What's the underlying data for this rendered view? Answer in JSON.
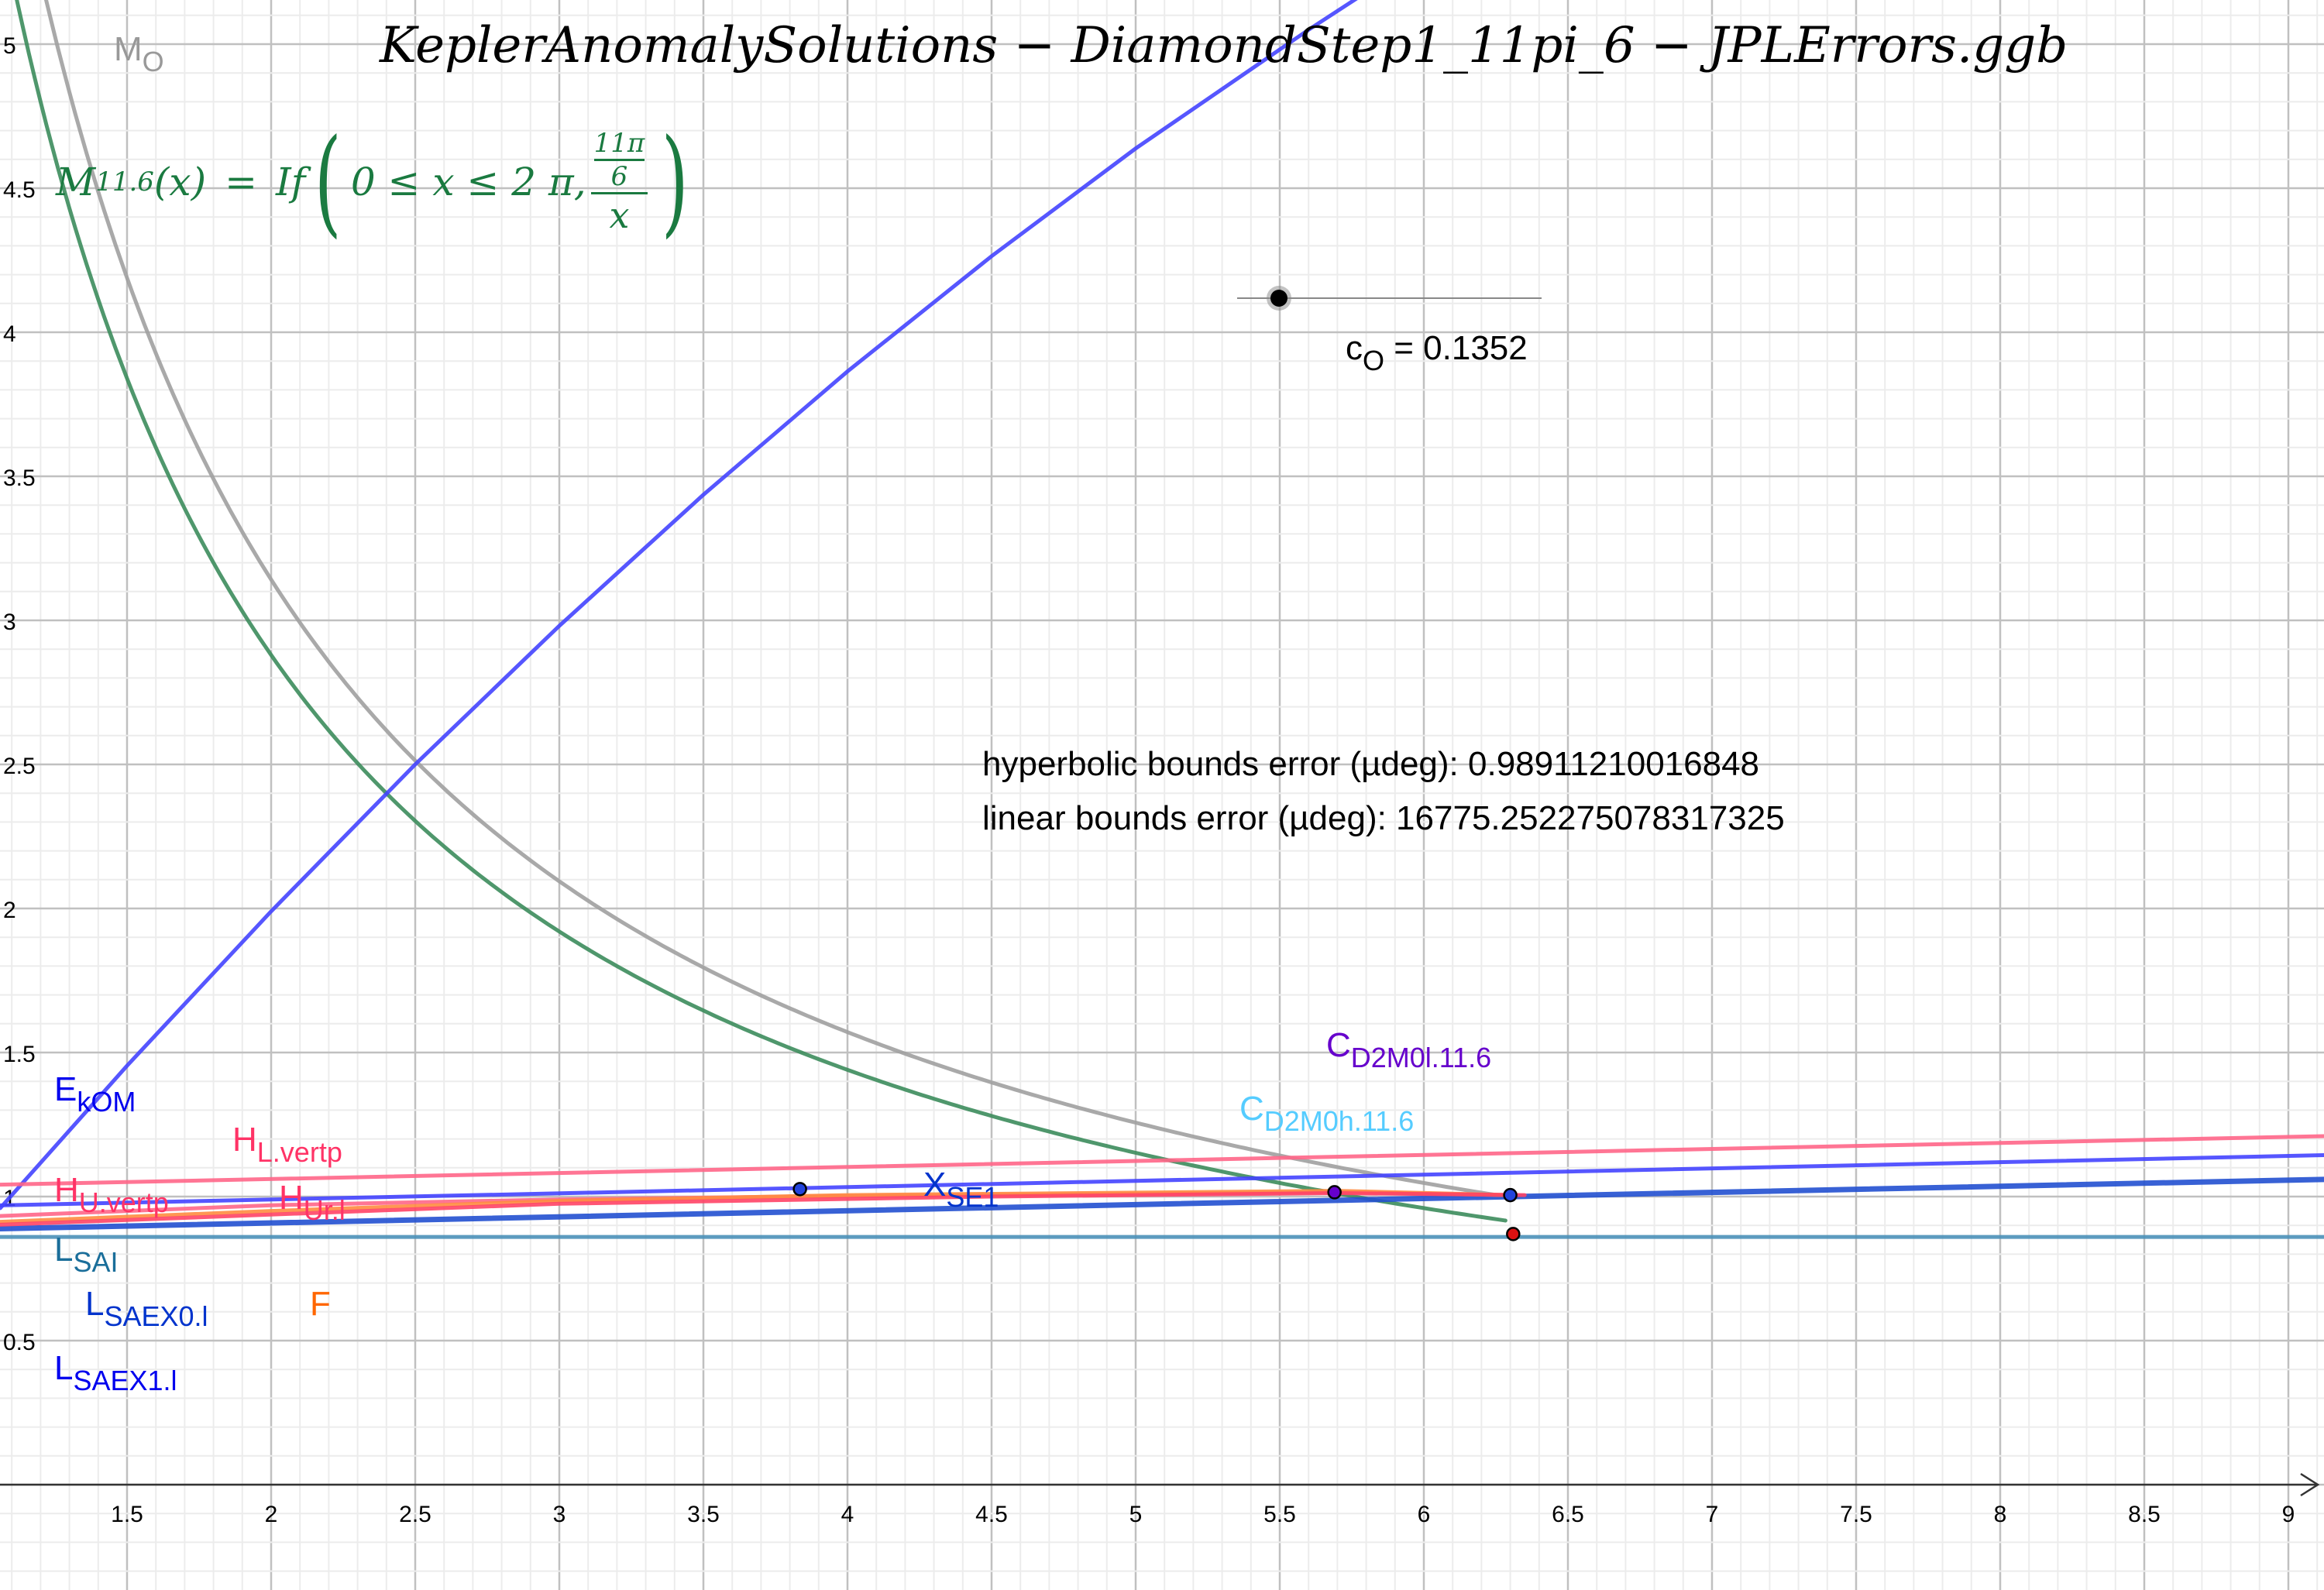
{
  "title": "KeplerAnomalySolutions − DiamondStep1_11pi_6 − JPLErrors.ggb",
  "formula": {
    "lhs": "M",
    "lhs_sub": "11.6",
    "arg": "(x)",
    "eq": "=",
    "fn": "If",
    "cond": "0 ≤ x ≤ 2 π,",
    "num_top": "11π",
    "num_bottom": "6",
    "den": "x"
  },
  "slider": {
    "name": "c",
    "name_sub": "O",
    "value_text": "= 0.1352",
    "value": 0.1352
  },
  "info": {
    "hyperbolic": "hyperbolic bounds error (µdeg): 0.98911210016848",
    "linear": "linear bounds error (µdeg): 16775.252275078317325"
  },
  "labels": {
    "mo": {
      "main": "M",
      "sub": "O",
      "color": "#999999"
    },
    "ekom": {
      "main": "E",
      "sub": "kOM",
      "color": "#0000ee"
    },
    "hl": {
      "main": "H",
      "sub": "L.vertp",
      "color": "#ff3366"
    },
    "hu": {
      "main": "H",
      "sub": "U.vertp",
      "color": "#ff3366"
    },
    "hur": {
      "main": "H",
      "sub": "Ur.l",
      "color": "#ff3366"
    },
    "lsai": {
      "main": "L",
      "sub": "SAI",
      "color": "#1a6e9a"
    },
    "lsaex0": {
      "main": "L",
      "sub": "SAEX0.l",
      "color": "#0033cc"
    },
    "lsaex1": {
      "main": "L",
      "sub": "SAEX1.l",
      "color": "#0000ee"
    },
    "f": {
      "main": "F",
      "sub": "",
      "color": "#ff6600"
    },
    "xse1": {
      "main": "X",
      "sub": "SE1",
      "color": "#0033cc"
    },
    "cl": {
      "main": "C",
      "sub": "D2M0l.11.6",
      "color": "#6600cc"
    },
    "ch": {
      "main": "C",
      "sub": "D2M0h.11.6",
      "color": "#55ccff"
    }
  },
  "chart_data": {
    "type": "line",
    "title": "KeplerAnomalySolutions − DiamondStep1_11pi_6 − JPLErrors.ggb",
    "xlim": [
      1.06,
      9.14
    ],
    "ylim": [
      -0.4,
      5.15
    ],
    "grid": true,
    "x_ticks": [
      "1.5",
      "2",
      "2.5",
      "3",
      "3.5",
      "4",
      "4.5",
      "5",
      "5.5",
      "6",
      "6.5",
      "7",
      "7.5",
      "8",
      "8.5",
      "9"
    ],
    "y_ticks": [
      "0.5",
      "1",
      "1.5",
      "2",
      "2.5",
      "3",
      "3.5",
      "4",
      "4.5",
      "5"
    ],
    "series": [
      {
        "name": "M_O",
        "color": "#a0a0a0",
        "function": "2π/x",
        "x": [
          1.2,
          6.2832
        ]
      },
      {
        "name": "M_11.6",
        "color": "#3c8c5c",
        "function": "(11π/6)/x",
        "x": [
          1.1,
          6.2832
        ]
      },
      {
        "name": "E_kOM",
        "color": "#4444ff",
        "points": [
          [
            1.06,
            0.96
          ],
          [
            1.5,
            1.454
          ],
          [
            2,
            1.99
          ],
          [
            2.5,
            2.5
          ],
          [
            3,
            2.981
          ],
          [
            3.5,
            3.436
          ],
          [
            4,
            3.864
          ],
          [
            4.5,
            4.264
          ],
          [
            5,
            4.638
          ],
          [
            5.6,
            5.05
          ],
          [
            5.8,
            5.18
          ]
        ]
      },
      {
        "name": "H_L.vertp",
        "color": "#ff6688",
        "points": [
          [
            1.0,
            1.04
          ],
          [
            9.14,
            1.21
          ]
        ]
      },
      {
        "color": "#4444ff",
        "points": [
          [
            1.0,
            0.968
          ],
          [
            9.14,
            1.144
          ]
        ]
      },
      {
        "name": "L_SAEX0.l",
        "color": "#2250d0",
        "points": [
          [
            1.0,
            0.887
          ],
          [
            9.14,
            1.06
          ]
        ]
      },
      {
        "name": "L_SAI",
        "color": "#4a90b8",
        "points": [
          [
            1.0,
            0.86
          ],
          [
            9.14,
            0.86
          ]
        ]
      },
      {
        "name": "H_U.vertp",
        "color": "#ff6688",
        "points": [
          [
            1.0,
            0.93
          ],
          [
            2,
            0.97
          ],
          [
            3,
            0.99
          ],
          [
            3.8,
            1.0
          ],
          [
            5.7,
            1.015
          ],
          [
            6.3,
            1.005
          ]
        ]
      },
      {
        "name": "F_x",
        "color": "#ff8c40",
        "points": [
          [
            1.0,
            0.91
          ],
          [
            2,
            0.95
          ],
          [
            3,
            0.985
          ],
          [
            4,
            1.005
          ],
          [
            5.7,
            1.02
          ],
          [
            6.3,
            1.005
          ]
        ]
      },
      {
        "color": "#ff4466",
        "points": [
          [
            1.0,
            0.9
          ],
          [
            3,
            0.975
          ],
          [
            4.5,
            1.0
          ],
          [
            5.7,
            1.012
          ],
          [
            6.35,
            1.005
          ]
        ]
      }
    ],
    "points": [
      {
        "x": 3.835,
        "y": 1.026,
        "color": "#2244dd"
      },
      {
        "x": 5.69,
        "y": 1.015,
        "color": "#6600cc"
      },
      {
        "x": 6.3,
        "y": 1.005,
        "color": "#2244dd"
      },
      {
        "x": 6.31,
        "y": 0.87,
        "color": "#dd1111"
      }
    ]
  }
}
